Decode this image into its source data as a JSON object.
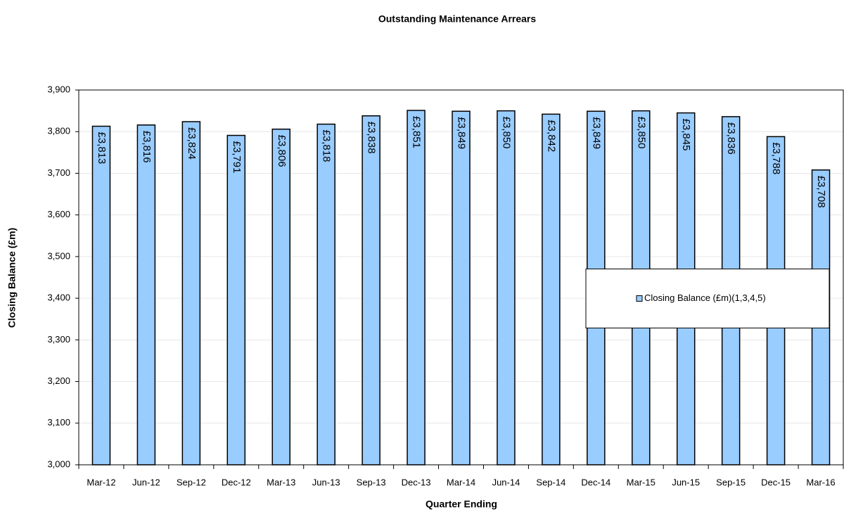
{
  "chart_data": {
    "type": "bar",
    "title": "Outstanding Maintenance Arrears",
    "x_label": "Quarter Ending",
    "y_label": "Closing Balance (£m)",
    "categories": [
      "Mar-12",
      "Jun-12",
      "Sep-12",
      "Dec-12",
      "Mar-13",
      "Jun-13",
      "Sep-13",
      "Dec-13",
      "Mar-14",
      "Jun-14",
      "Sep-14",
      "Dec-14",
      "Mar-15",
      "Jun-15",
      "Sep-15",
      "Dec-15",
      "Mar-16"
    ],
    "series": [
      {
        "name": "Closing Balance (£m)(1,3,4,5)",
        "color": "#99ccff",
        "values": [
          3813,
          3816,
          3824,
          3791,
          3806,
          3818,
          3838,
          3851,
          3849,
          3850,
          3842,
          3849,
          3850,
          3845,
          3836,
          3788,
          3708
        ],
        "value_labels": [
          "£3,813",
          "£3,816",
          "£3,824",
          "£3,791",
          "£3,806",
          "£3,818",
          "£3,838",
          "£3,851",
          "£3,849",
          "£3,850",
          "£3,842",
          "£3,849",
          "£3,850",
          "£3,845",
          "£3,836",
          "£3,788",
          "£3,708"
        ]
      }
    ],
    "ylim": [
      3000,
      3900
    ],
    "yticks": [
      {
        "value": 3000,
        "label": "3,000"
      },
      {
        "value": 3100,
        "label": "3,100"
      },
      {
        "value": 3200,
        "label": "3,200"
      },
      {
        "value": 3300,
        "label": "3,300"
      },
      {
        "value": 3400,
        "label": "3,400"
      },
      {
        "value": 3500,
        "label": "3,500"
      },
      {
        "value": 3600,
        "label": "3,600"
      },
      {
        "value": 3700,
        "label": "3,700"
      },
      {
        "value": 3800,
        "label": "3,800"
      },
      {
        "value": 3900,
        "label": "3,900"
      }
    ],
    "grid": true,
    "legend": "right"
  }
}
